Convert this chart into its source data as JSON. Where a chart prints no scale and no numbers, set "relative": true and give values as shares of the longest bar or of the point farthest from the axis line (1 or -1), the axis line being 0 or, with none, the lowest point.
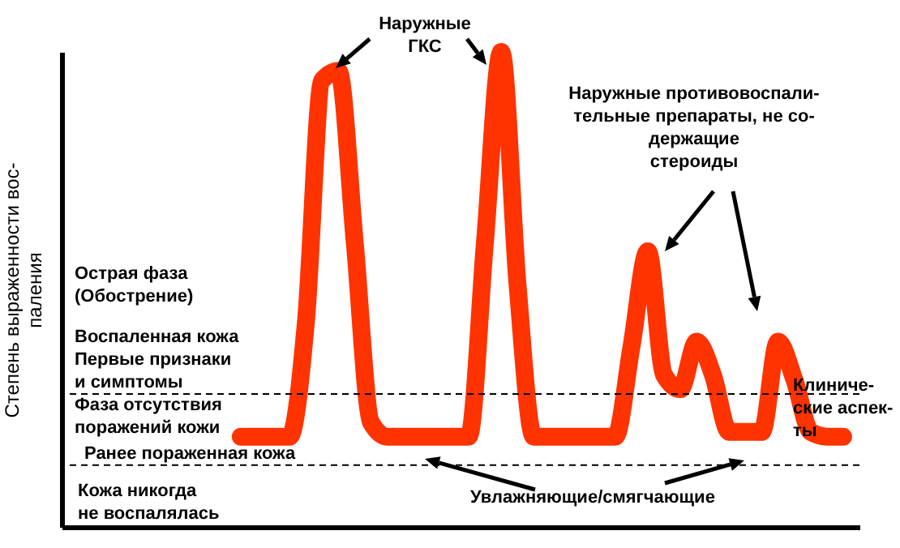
{
  "chart_data": {
    "type": "line",
    "relative": true,
    "ylabel": "Степень выраженности вос-\nпаления",
    "categories": [
      null,
      null,
      null,
      null,
      null,
      null,
      null,
      null,
      null,
      null,
      null,
      null,
      null,
      null,
      null,
      null,
      null,
      null,
      null,
      null,
      null,
      null,
      null,
      null,
      null,
      null,
      null,
      null,
      null,
      null,
      null,
      null,
      null,
      null,
      null,
      null,
      null,
      null,
      null,
      null,
      null,
      null,
      null,
      null,
      null,
      null,
      null,
      null,
      null,
      null
    ],
    "series": [
      {
        "color": "#ff3300",
        "values": [
          null,
          null,
          null,
          null,
          null,
          null,
          null,
          null,
          null,
          null,
          null,
          0.19,
          0.19,
          0.19,
          0.19,
          0.43,
          0.94,
          0.96,
          0.6,
          0.22,
          0.19,
          0.19,
          0.19,
          0.19,
          0.19,
          0.19,
          0.6,
          1.0,
          0.51,
          0.19,
          0.19,
          0.19,
          0.19,
          0.19,
          0.19,
          0.38,
          0.58,
          0.32,
          0.29,
          0.39,
          0.32,
          0.2,
          0.2,
          0.2,
          0.39,
          0.31,
          0.2,
          0.19,
          0.19,
          null
        ]
      }
    ],
    "ref_lines": [
      {
        "axis": "y",
        "value": 0.28,
        "color": "#000000",
        "line_style": "dashed"
      },
      {
        "axis": "y",
        "value": 0.13,
        "color": "#000000",
        "line_style": "dashed"
      }
    ],
    "annotations": [
      "Наружные\nГКС",
      "Наружные противовоспали-\nтельные препараты, не со-\nдержащие\nстероиды",
      "Увлажняющие/смягчающие",
      "Клиниче-\nские аспек-\nты",
      "Острая фаза\n(Обострение)",
      "Воспаленная кожа",
      "Первые признаки\nи симптомы",
      "Фаза отсутствия\nпоражений кожи",
      "Ранее пораженная кожа",
      "Кожа никогда\nне воспалялась"
    ],
    "grid": false,
    "marker": "none",
    "line_style": "solid"
  }
}
